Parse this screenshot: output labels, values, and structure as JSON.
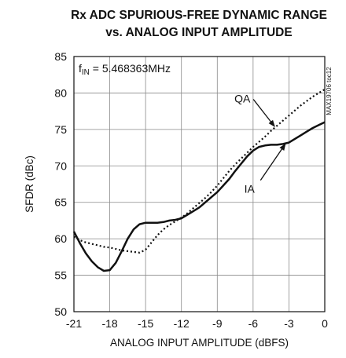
{
  "chart_data": {
    "type": "line",
    "title_line1": "Rx ADC SPURIOUS-FREE DYNAMIC RANGE",
    "title_line2": "vs. ANALOG INPUT AMPLITUDE",
    "xlabel": "ANALOG INPUT AMPLITUDE (dBFS)",
    "ylabel": "SFDR (dBc)",
    "xlim": [
      -21,
      0
    ],
    "ylim": [
      50,
      85
    ],
    "x_ticks": [
      -21,
      -18,
      -15,
      -12,
      -9,
      -6,
      -3,
      0
    ],
    "x_tick_labels": [
      "-21",
      "-18",
      "-15",
      "-12",
      "-9",
      "-6",
      "-3",
      "0"
    ],
    "y_ticks": [
      50,
      55,
      60,
      65,
      70,
      75,
      80,
      85
    ],
    "y_tick_labels": [
      "50",
      "55",
      "60",
      "65",
      "70",
      "75",
      "80",
      "85"
    ],
    "grid": true,
    "condition_label": {
      "f": "f",
      "sub": "IN",
      "rest": " = 5.468363MHz"
    },
    "side_code": "MAX19706 toc12",
    "series": [
      {
        "name": "IA",
        "style": "solid",
        "x": [
          -21,
          -20.5,
          -20,
          -19.5,
          -19,
          -18.5,
          -18,
          -17.5,
          -17,
          -16.5,
          -16,
          -15.5,
          -15,
          -14.5,
          -14,
          -13.5,
          -13,
          -12.5,
          -12,
          -11.5,
          -11,
          -10.5,
          -10,
          -9.5,
          -9,
          -8.5,
          -8,
          -7.5,
          -7,
          -6.5,
          -6,
          -5.5,
          -5,
          -4.5,
          -4,
          -3.5,
          -3,
          -2.5,
          -2,
          -1.5,
          -1,
          -0.5,
          0
        ],
        "y": [
          61.0,
          59.4,
          58.0,
          56.9,
          56.1,
          55.6,
          55.7,
          56.7,
          58.3,
          60.0,
          61.3,
          62.0,
          62.2,
          62.2,
          62.2,
          62.3,
          62.5,
          62.6,
          62.8,
          63.3,
          63.8,
          64.3,
          65.0,
          65.7,
          66.4,
          67.3,
          68.2,
          69.3,
          70.3,
          71.3,
          72.1,
          72.6,
          72.8,
          72.9,
          72.9,
          73.0,
          73.2,
          73.7,
          74.2,
          74.7,
          75.2,
          75.6,
          76.0
        ]
      },
      {
        "name": "QA",
        "style": "dotted",
        "x": [
          -21,
          -20.5,
          -20,
          -19.5,
          -19,
          -18.5,
          -18,
          -17.5,
          -17,
          -16.5,
          -16,
          -15.5,
          -15,
          -14.5,
          -14,
          -13.5,
          -13,
          -12.5,
          -12,
          -11.5,
          -11,
          -10.5,
          -10,
          -9.5,
          -9,
          -8.5,
          -8,
          -7.5,
          -7,
          -6.5,
          -6,
          -5.5,
          -5,
          -4.5,
          -4,
          -3.5,
          -3,
          -2.5,
          -2,
          -1.5,
          -1,
          -0.5,
          0
        ],
        "y": [
          60.3,
          59.8,
          59.5,
          59.3,
          59.1,
          58.9,
          58.8,
          58.6,
          58.4,
          58.3,
          58.2,
          58.1,
          58.5,
          59.5,
          60.5,
          61.3,
          61.9,
          62.4,
          62.9,
          63.5,
          64.2,
          64.9,
          65.6,
          66.4,
          67.3,
          68.3,
          69.3,
          70.2,
          71.0,
          71.8,
          72.6,
          73.3,
          74.0,
          74.8,
          75.5,
          76.2,
          76.9,
          77.6,
          78.3,
          78.9,
          79.5,
          80.0,
          80.5
        ]
      }
    ],
    "annotations": [
      {
        "label": "QA",
        "series": "QA",
        "text_at": [
          -6.9,
          78.7
        ],
        "arrow_to": [
          -4.2,
          75.4
        ]
      },
      {
        "label": "IA",
        "series": "IA",
        "text_at": [
          -6.3,
          66.3
        ],
        "arrow_to": [
          -3.3,
          73.0
        ]
      }
    ]
  }
}
